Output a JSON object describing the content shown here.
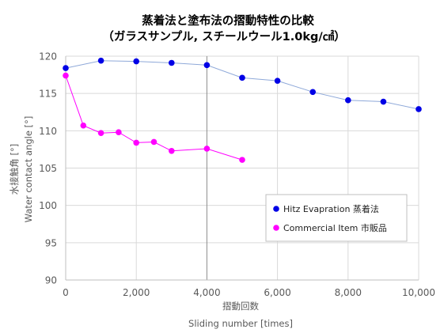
{
  "chart_data": {
    "type": "scatter",
    "title": "蒸着法と塗布法の摺動特性の比較",
    "subtitle": "（ガラスサンプル, スチールウール1.0kg/㎠）",
    "xlabel_ja": "摺動回数",
    "xlabel_en": "Sliding number [times]",
    "ylabel_ja": "水接触角 [°]",
    "ylabel_en": "Water contact angle [°]",
    "xlim": [
      0,
      10000
    ],
    "ylim": [
      90,
      120
    ],
    "xticks": [
      0,
      2000,
      4000,
      6000,
      8000,
      10000
    ],
    "xtick_labels": [
      "0",
      "2,000",
      "4,000",
      "6,000",
      "8,000",
      "10,000"
    ],
    "yticks": [
      90,
      95,
      100,
      105,
      110,
      115,
      120
    ],
    "grid": true,
    "legend_position": "right-center",
    "series": [
      {
        "name": "Hitz Evapration 蒸着法",
        "color": "#0000e6",
        "line_color": "#8fa9d9",
        "x": [
          0,
          1000,
          2000,
          3000,
          4000,
          5000,
          6000,
          7000,
          8000,
          9000,
          10000
        ],
        "y": [
          118.4,
          119.4,
          119.3,
          119.1,
          118.8,
          117.1,
          116.7,
          115.2,
          114.1,
          113.9,
          112.9
        ]
      },
      {
        "name": "Commercial Item 市販品",
        "color": "#ff00ff",
        "line_color": "#ff00ff",
        "x": [
          0,
          500,
          1000,
          1500,
          2000,
          2500,
          3000,
          4000,
          5000
        ],
        "y": [
          117.4,
          110.7,
          109.7,
          109.8,
          108.4,
          108.5,
          107.3,
          107.6,
          106.1
        ]
      }
    ]
  }
}
